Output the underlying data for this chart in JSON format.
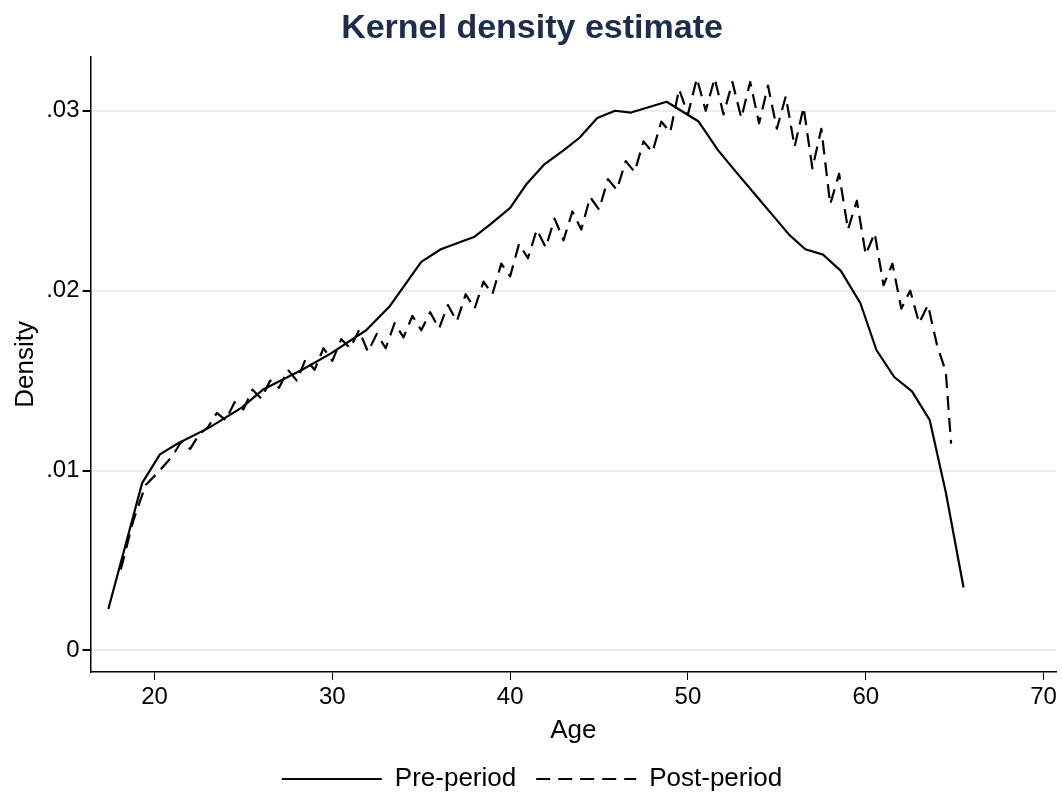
{
  "chart_data": {
    "type": "line",
    "title": "Kernel density estimate",
    "xlabel": "Age",
    "ylabel": "Density",
    "xlim": [
      16.4,
      70.7
    ],
    "xticks": [
      20,
      30,
      40,
      50,
      60,
      70
    ],
    "ylim": [
      -0.0012,
      0.033
    ],
    "yticks": [
      0,
      {
        "value": 0.01,
        "label": ".01"
      },
      {
        "value": 0.02,
        "label": ".02"
      },
      {
        "value": 0.03,
        "label": ".03"
      }
    ],
    "grid": "y",
    "legend": "bottom",
    "marker": "none",
    "series": [
      {
        "name": "Pre-period",
        "color": "#000000",
        "line_style": "solid",
        "x": [
          17.4,
          19.3,
          20.3,
          21.3,
          23.1,
          24.9,
          26.1,
          28.3,
          29.9,
          31.9,
          33.2,
          35.0,
          36.1,
          37.2,
          38.0,
          38.9,
          40.0,
          40.9,
          41.9,
          43.0,
          43.9,
          44.9,
          45.9,
          46.8,
          48.8,
          50.6,
          51.7,
          52.7,
          55.7,
          56.6,
          57.6,
          58.6,
          59.7,
          60.6,
          61.6,
          62.6,
          63.6,
          64.5,
          65.5
        ],
        "values": [
          0.0023,
          0.0093,
          0.0109,
          0.0115,
          0.0124,
          0.0135,
          0.0145,
          0.0156,
          0.0165,
          0.0178,
          0.0191,
          0.0216,
          0.0223,
          0.0227,
          0.023,
          0.0237,
          0.0246,
          0.0259,
          0.027,
          0.0278,
          0.0285,
          0.0296,
          0.03,
          0.0299,
          0.0305,
          0.0294,
          0.0278,
          0.0266,
          0.0231,
          0.0223,
          0.022,
          0.0211,
          0.0193,
          0.0167,
          0.0152,
          0.0144,
          0.0128,
          0.0088,
          0.0035
        ]
      },
      {
        "name": "Post-period",
        "color": "#000000",
        "line_style": "dashed",
        "x": [
          18.1,
          18.8,
          19.5,
          20.2,
          21.0,
          21.5,
          22.0,
          22.5,
          23.0,
          23.5,
          24.0,
          24.5,
          25.0,
          25.5,
          26.0,
          26.5,
          27.0,
          27.5,
          28.0,
          28.5,
          29.0,
          29.5,
          30.0,
          30.5,
          31.0,
          31.5,
          32.0,
          32.5,
          33.0,
          33.5,
          34.0,
          34.5,
          35.0,
          35.5,
          36.0,
          36.5,
          37.0,
          37.5,
          38.0,
          38.5,
          39.0,
          39.5,
          40.0,
          40.5,
          41.0,
          41.5,
          42.0,
          42.5,
          43.0,
          43.5,
          44.0,
          44.5,
          45.0,
          45.5,
          46.0,
          46.5,
          47.0,
          47.5,
          48.0,
          48.5,
          49.0,
          49.5,
          50.0,
          50.5,
          51.0,
          51.5,
          52.0,
          52.5,
          53.0,
          53.5,
          54.0,
          54.5,
          55.0,
          55.5,
          56.0,
          56.5,
          57.0,
          57.5,
          58.0,
          58.5,
          59.0,
          59.5,
          60.0,
          60.5,
          61.0,
          61.5,
          62.0,
          62.5,
          63.0,
          63.5,
          64.0,
          64.5,
          64.8
        ],
        "values": [
          0.0045,
          0.0072,
          0.0092,
          0.0099,
          0.0108,
          0.0116,
          0.0112,
          0.012,
          0.0124,
          0.0132,
          0.0128,
          0.0138,
          0.0134,
          0.0145,
          0.014,
          0.015,
          0.0146,
          0.0156,
          0.015,
          0.0162,
          0.0156,
          0.0168,
          0.0161,
          0.0173,
          0.0168,
          0.0178,
          0.0166,
          0.0176,
          0.0168,
          0.0182,
          0.0174,
          0.0186,
          0.0178,
          0.0188,
          0.0179,
          0.0192,
          0.0183,
          0.0198,
          0.019,
          0.0205,
          0.0198,
          0.0215,
          0.0208,
          0.0226,
          0.0218,
          0.0234,
          0.0224,
          0.024,
          0.0228,
          0.0244,
          0.0234,
          0.0252,
          0.0245,
          0.0262,
          0.0256,
          0.0272,
          0.0266,
          0.0283,
          0.0277,
          0.0294,
          0.0288,
          0.0312,
          0.0298,
          0.0318,
          0.03,
          0.0318,
          0.0298,
          0.0316,
          0.0296,
          0.0316,
          0.0293,
          0.0314,
          0.029,
          0.0308,
          0.028,
          0.0302,
          0.0268,
          0.029,
          0.0248,
          0.0265,
          0.0234,
          0.025,
          0.022,
          0.0232,
          0.0203,
          0.0215,
          0.019,
          0.02,
          0.0182,
          0.0192,
          0.017,
          0.0155,
          0.0115
        ]
      }
    ]
  }
}
